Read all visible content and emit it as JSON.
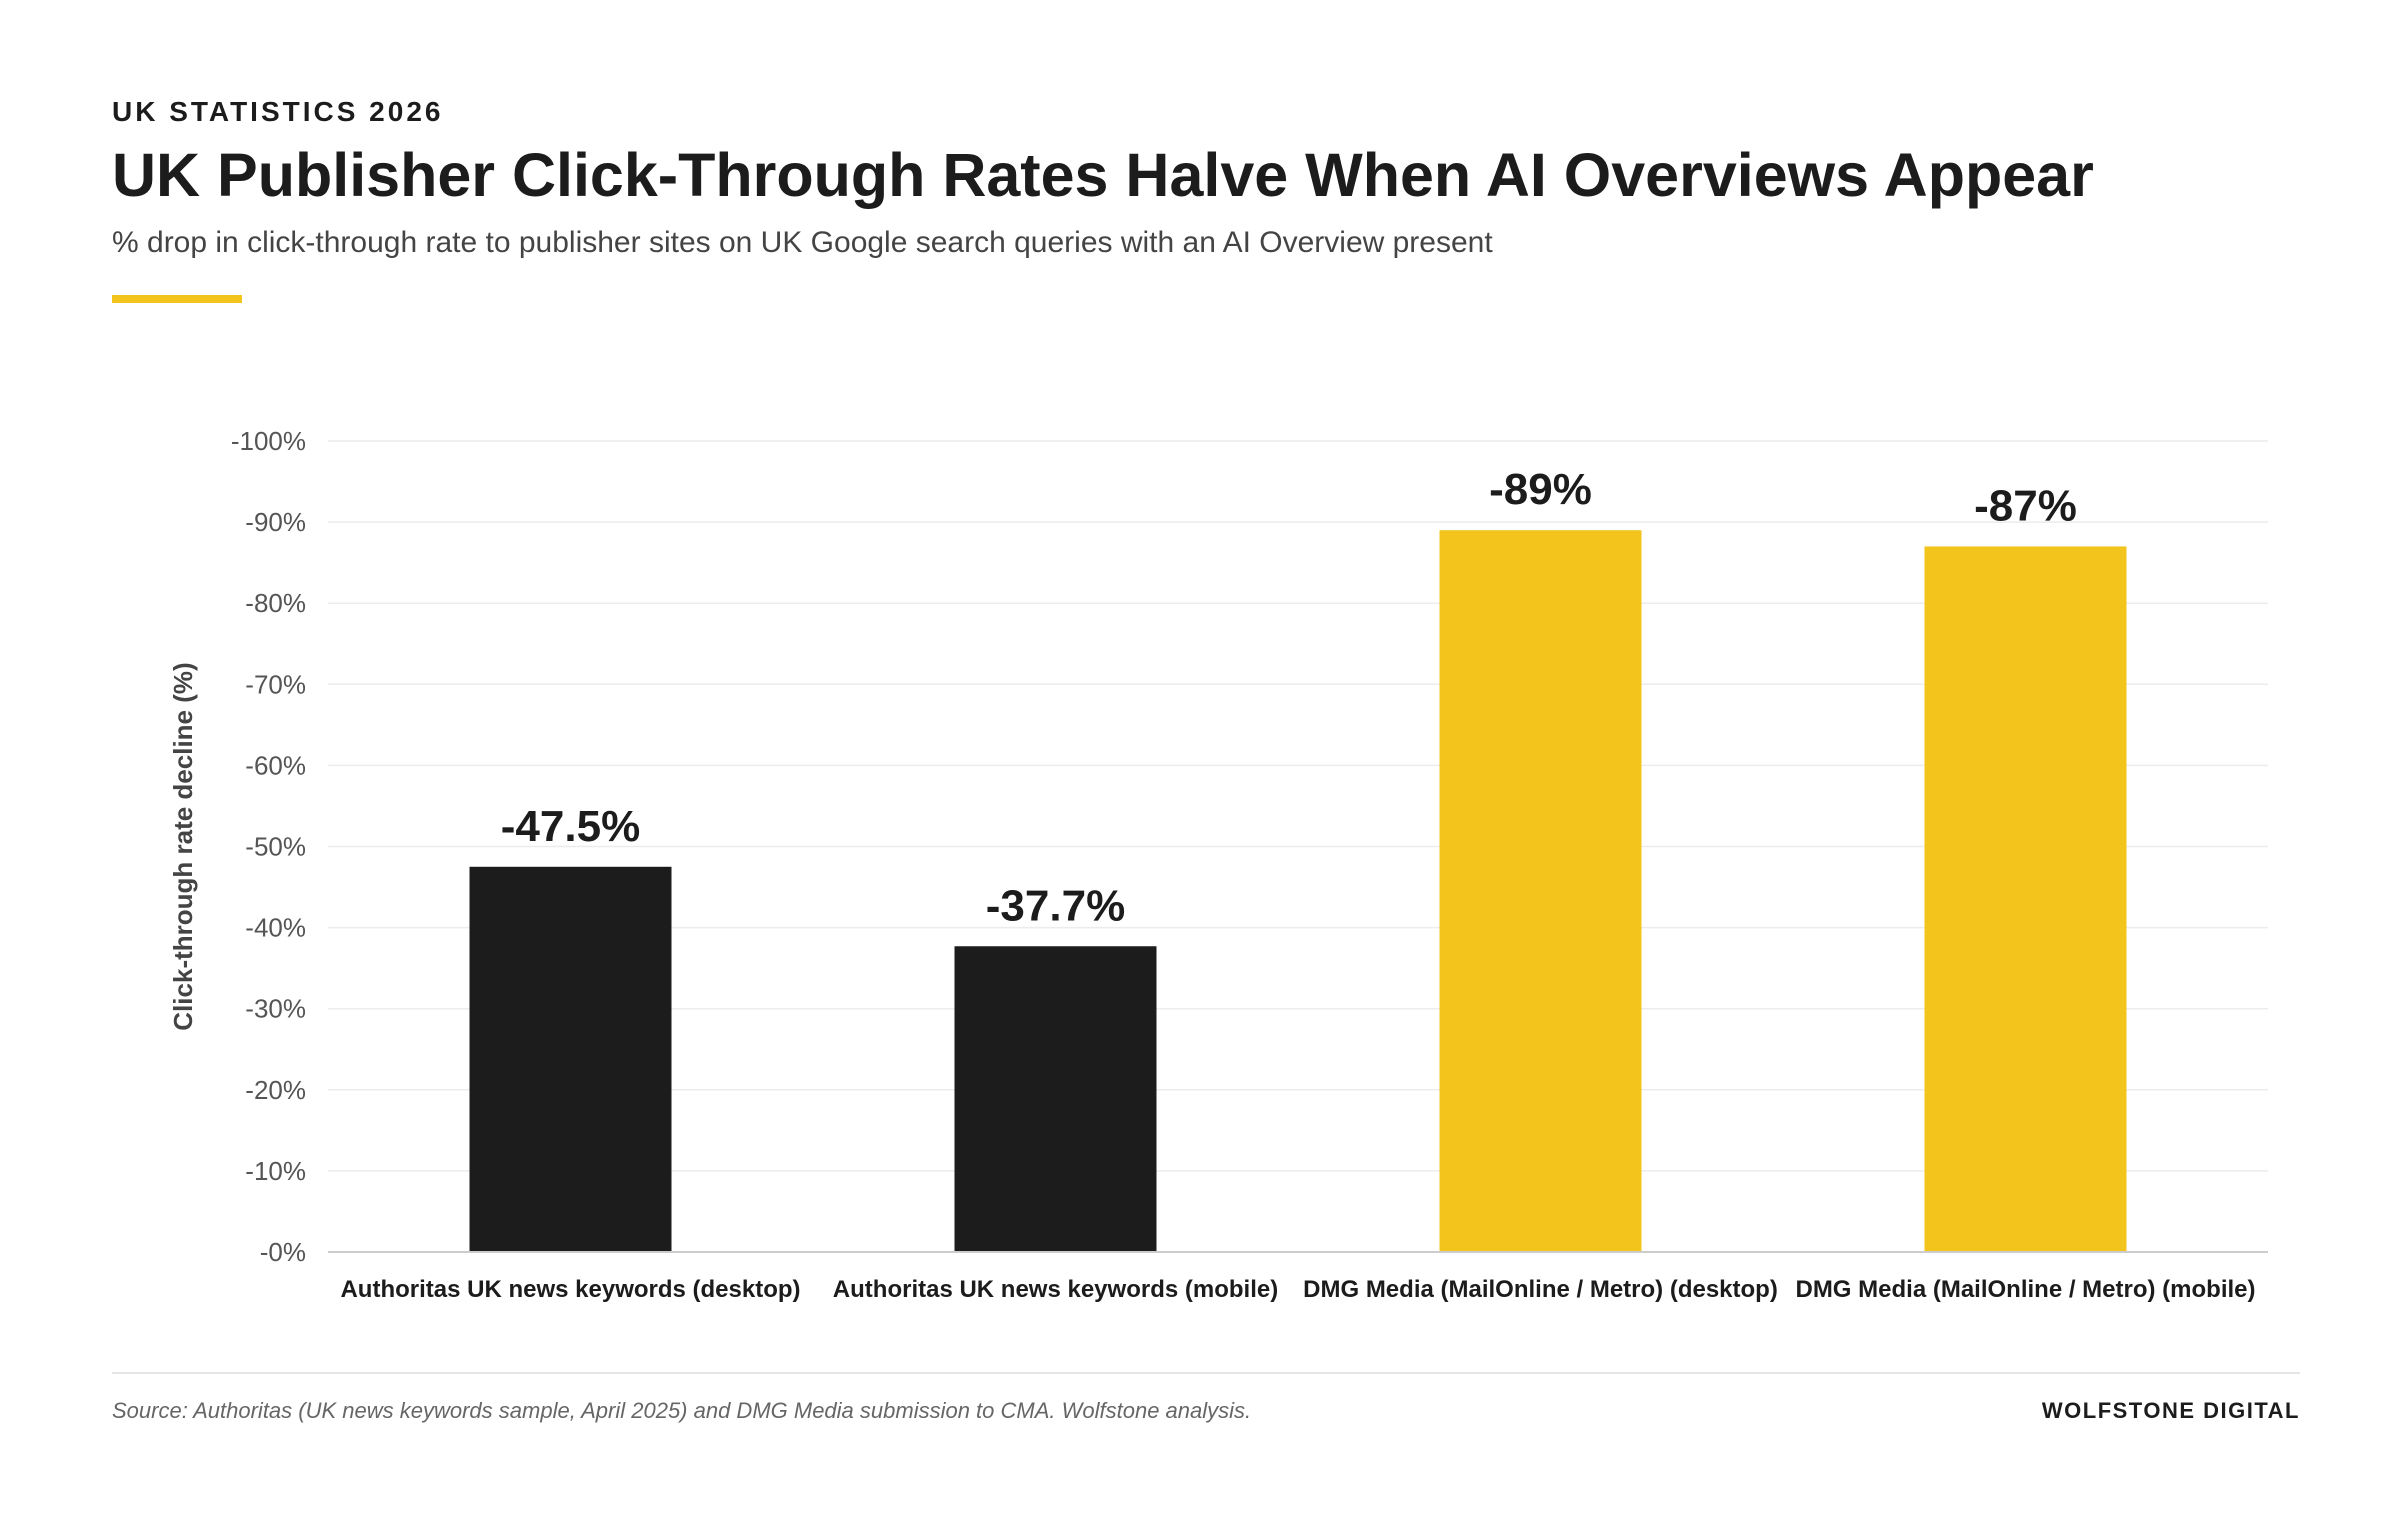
{
  "header": {
    "eyebrow": "UK STATISTICS 2026",
    "title": "UK Publisher Click-Through Rates Halve When AI Overviews Appear",
    "subtitle": "% drop in click-through rate to publisher sites on UK Google search queries with an AI Overview present"
  },
  "footer": {
    "source": "Source: Authoritas (UK news keywords sample, April 2025) and DMG Media submission to CMA. Wolfstone analysis.",
    "brand": "WOLFSTONE DIGITAL"
  },
  "colors": {
    "accent": "#f2c41c",
    "dark_bar": "#1c1c1c",
    "yellow_bar": "#f2c41c",
    "grid": "#ececec"
  },
  "chart_data": {
    "type": "bar",
    "categories": [
      "Authoritas UK news keywords (desktop)",
      "Authoritas UK news keywords (mobile)",
      "DMG Media (MailOnline / Metro) (desktop)",
      "DMG Media (MailOnline / Metro) (mobile)"
    ],
    "values": [
      47.5,
      37.7,
      89,
      87
    ],
    "data_labels": [
      "-47.5%",
      "-37.7%",
      "-89%",
      "-87%"
    ],
    "bar_colors": [
      "#1c1c1c",
      "#1c1c1c",
      "#f2c41c",
      "#f2c41c"
    ],
    "ylabel": "Click-through rate decline (%)",
    "xlabel": "",
    "ylim": [
      0,
      100
    ],
    "yticks": [
      0,
      10,
      20,
      30,
      40,
      50,
      60,
      70,
      80,
      90,
      100
    ],
    "ytick_labels": [
      "-0%",
      "-10%",
      "-20%",
      "-30%",
      "-40%",
      "-50%",
      "-60%",
      "-70%",
      "-80%",
      "-90%",
      "-100%"
    ],
    "grid": true,
    "legend": "none"
  }
}
